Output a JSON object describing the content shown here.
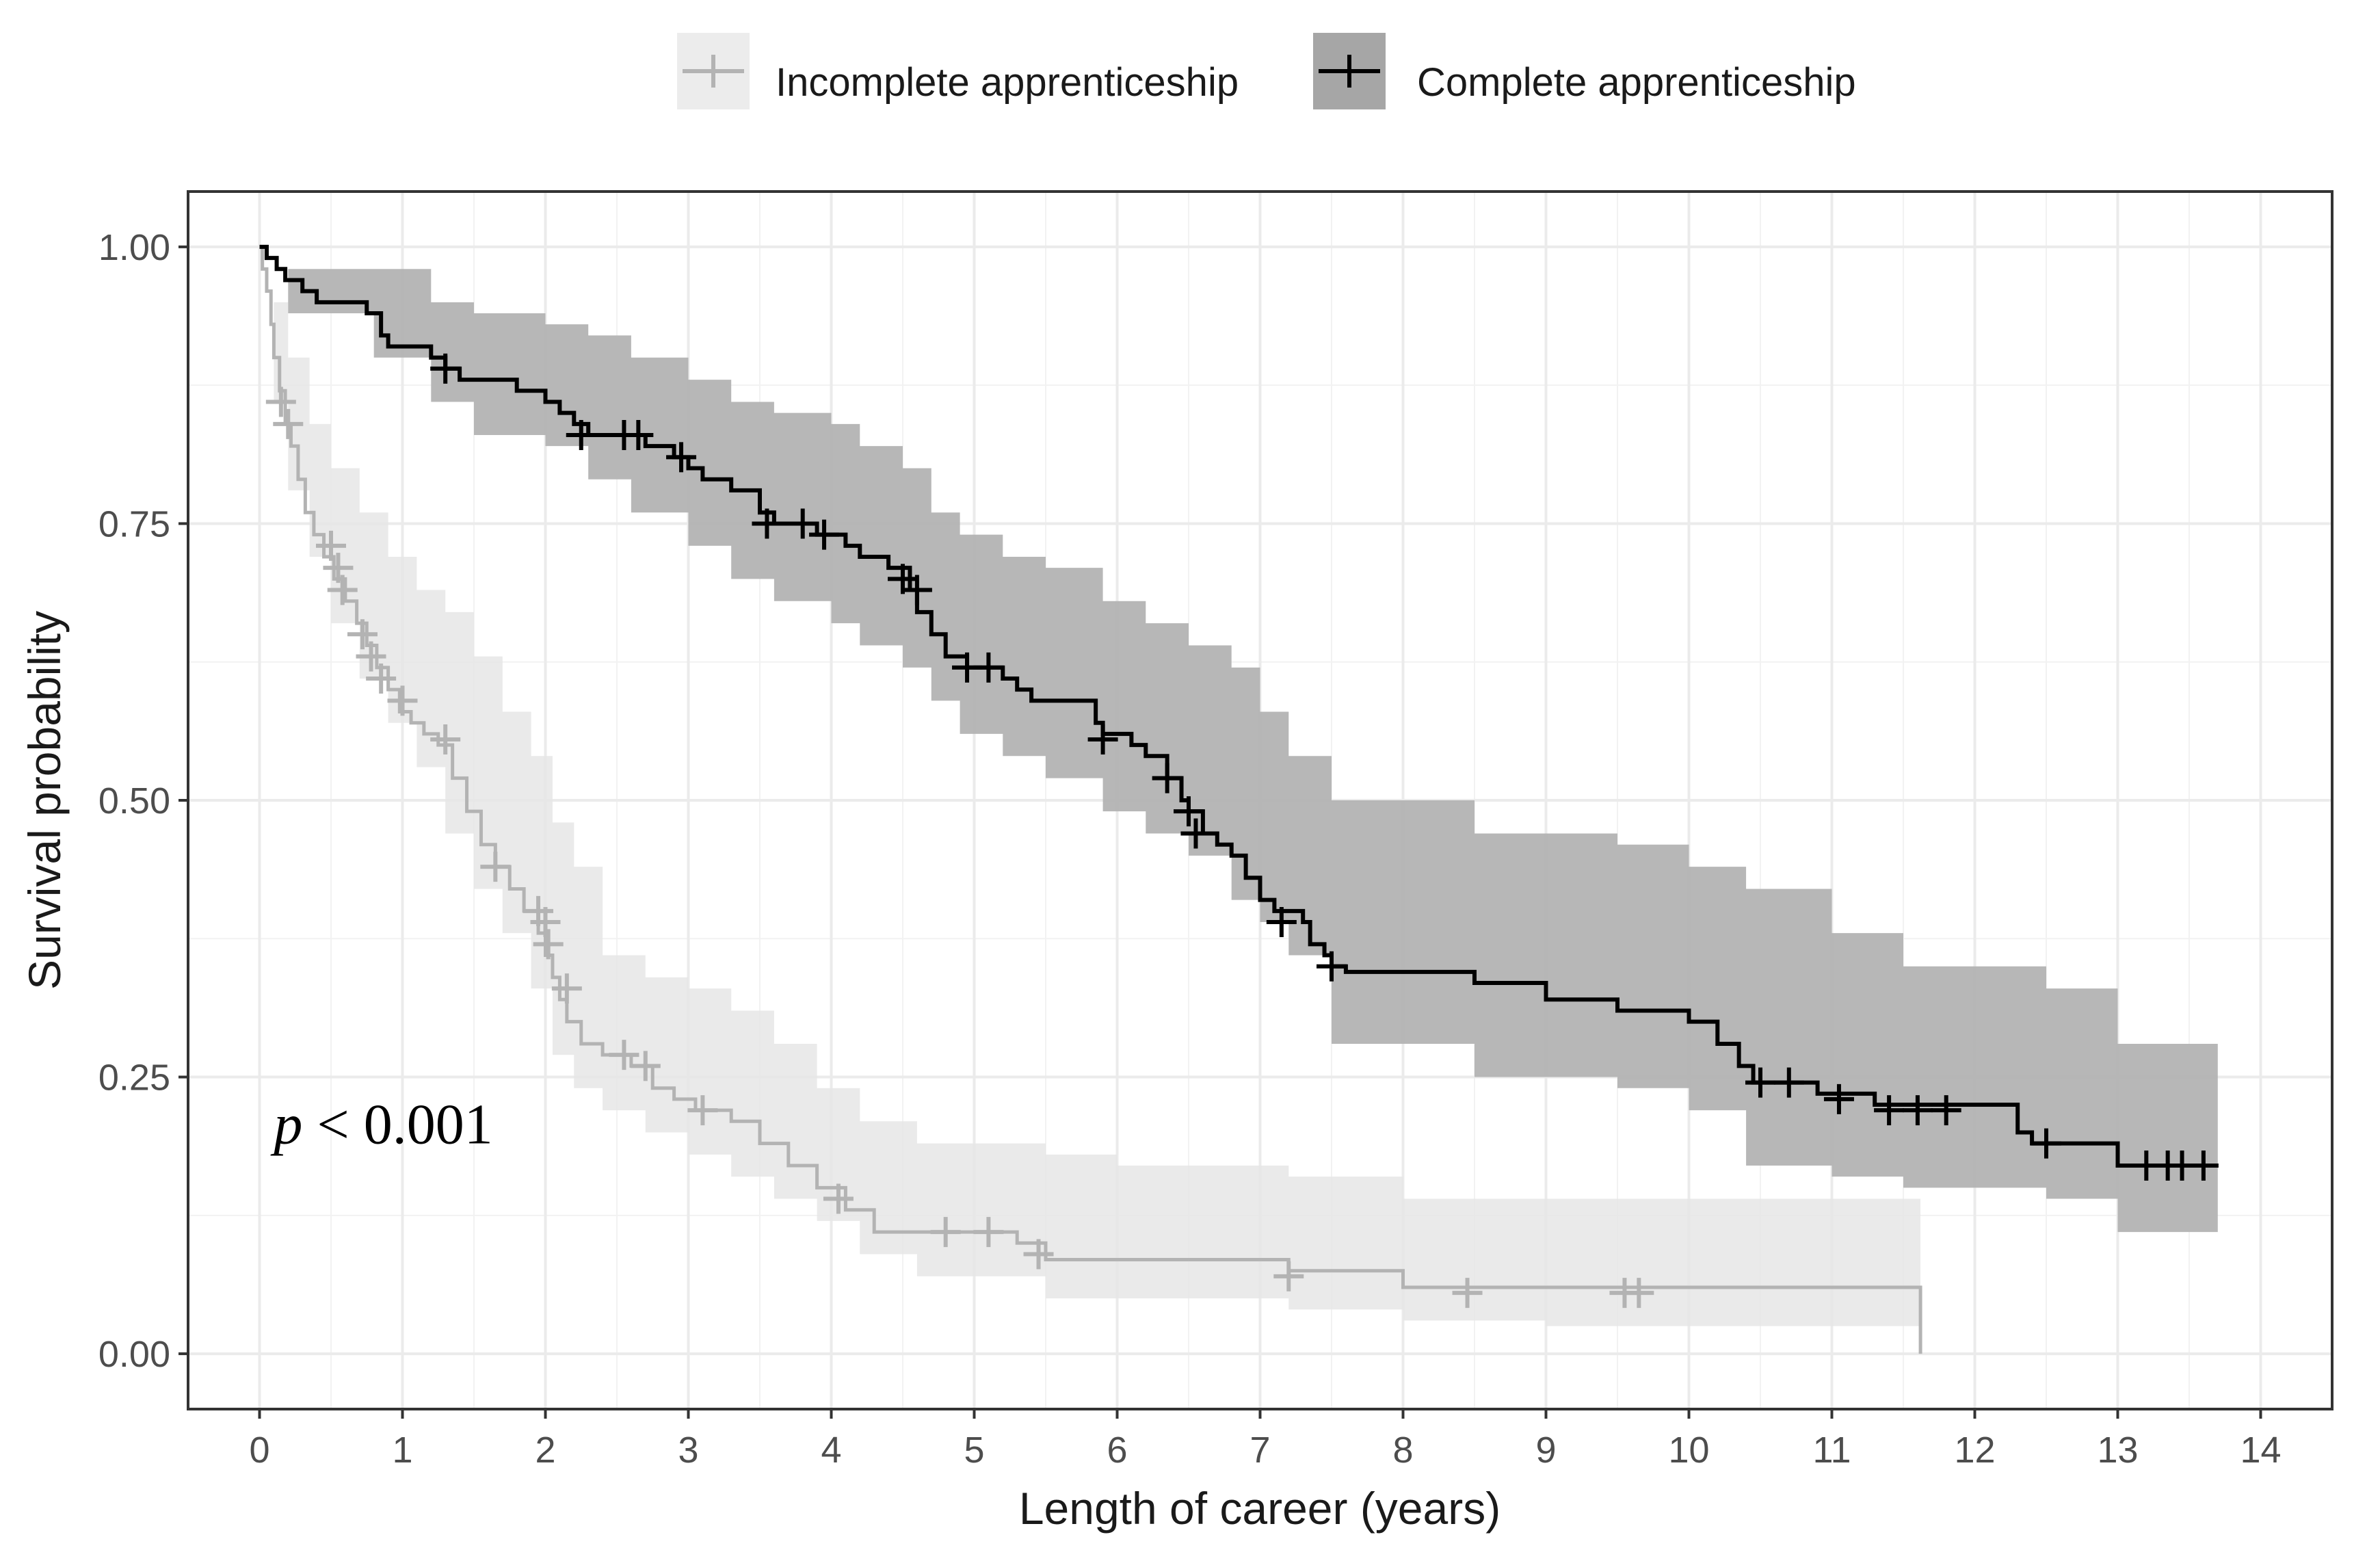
{
  "chart_data": {
    "type": "line",
    "subtype": "kaplan-meier survival curve with confidence bands",
    "xlabel": "Length of career (years)",
    "ylabel": "Survival probability",
    "xlim": [
      -0.5,
      14.5
    ],
    "ylim": [
      -0.05,
      1.05
    ],
    "xticks": [
      0,
      1,
      2,
      3,
      4,
      5,
      6,
      7,
      8,
      9,
      10,
      11,
      12,
      13,
      14
    ],
    "yticks": [
      0,
      0.25,
      0.5,
      0.75,
      1
    ],
    "xtick_labels": [
      "0",
      "1",
      "2",
      "3",
      "4",
      "5",
      "6",
      "7",
      "8",
      "9",
      "10",
      "11",
      "12",
      "13",
      "14"
    ],
    "ytick_labels": [
      "0.00",
      "0.25",
      "0.50",
      "0.75",
      "1.00"
    ],
    "grid": true,
    "legend_position": "top",
    "annotation": {
      "prefix": "p",
      "text": " < 0.001",
      "x": 0.1,
      "y": 0.19
    },
    "series": [
      {
        "name": "Incomplete apprenticeship",
        "line_color": "#b3b3b3",
        "band_color": "#e6e6e6",
        "legend_key_color": "#cccccc",
        "steps": [
          [
            0,
            1.0
          ],
          [
            0.02,
            0.98
          ],
          [
            0.05,
            0.96
          ],
          [
            0.08,
            0.93
          ],
          [
            0.1,
            0.9
          ],
          [
            0.14,
            0.87
          ],
          [
            0.18,
            0.84
          ],
          [
            0.22,
            0.82
          ],
          [
            0.27,
            0.79
          ],
          [
            0.32,
            0.76
          ],
          [
            0.38,
            0.74
          ],
          [
            0.45,
            0.72
          ],
          [
            0.52,
            0.7
          ],
          [
            0.6,
            0.68
          ],
          [
            0.68,
            0.66
          ],
          [
            0.75,
            0.64
          ],
          [
            0.82,
            0.62
          ],
          [
            0.9,
            0.6
          ],
          [
            0.98,
            0.58
          ],
          [
            1.06,
            0.57
          ],
          [
            1.15,
            0.56
          ],
          [
            1.25,
            0.55
          ],
          [
            1.35,
            0.52
          ],
          [
            1.45,
            0.49
          ],
          [
            1.55,
            0.46
          ],
          [
            1.65,
            0.44
          ],
          [
            1.75,
            0.42
          ],
          [
            1.85,
            0.4
          ],
          [
            1.95,
            0.38
          ],
          [
            2.0,
            0.36
          ],
          [
            2.05,
            0.34
          ],
          [
            2.1,
            0.32
          ],
          [
            2.15,
            0.3
          ],
          [
            2.25,
            0.28
          ],
          [
            2.4,
            0.27
          ],
          [
            2.6,
            0.26
          ],
          [
            2.75,
            0.24
          ],
          [
            2.9,
            0.23
          ],
          [
            3.05,
            0.22
          ],
          [
            3.3,
            0.21
          ],
          [
            3.5,
            0.19
          ],
          [
            3.7,
            0.17
          ],
          [
            3.9,
            0.15
          ],
          [
            4.1,
            0.13
          ],
          [
            4.3,
            0.11
          ],
          [
            5.3,
            0.1
          ],
          [
            5.5,
            0.085
          ],
          [
            7.2,
            0.075
          ],
          [
            8.0,
            0.06
          ],
          [
            11.62,
            0.06
          ],
          [
            11.62,
            0.0
          ]
        ],
        "band_upper": [
          [
            0,
            1.0
          ],
          [
            0.1,
            0.95
          ],
          [
            0.2,
            0.9
          ],
          [
            0.35,
            0.84
          ],
          [
            0.5,
            0.8
          ],
          [
            0.7,
            0.76
          ],
          [
            0.9,
            0.72
          ],
          [
            1.1,
            0.69
          ],
          [
            1.3,
            0.67
          ],
          [
            1.5,
            0.63
          ],
          [
            1.7,
            0.58
          ],
          [
            1.9,
            0.54
          ],
          [
            2.05,
            0.48
          ],
          [
            2.2,
            0.44
          ],
          [
            2.4,
            0.36
          ],
          [
            2.7,
            0.34
          ],
          [
            3.0,
            0.33
          ],
          [
            3.3,
            0.31
          ],
          [
            3.6,
            0.28
          ],
          [
            3.9,
            0.24
          ],
          [
            4.2,
            0.21
          ],
          [
            4.6,
            0.19
          ],
          [
            5.5,
            0.18
          ],
          [
            6.0,
            0.17
          ],
          [
            7.2,
            0.16
          ],
          [
            8.0,
            0.14
          ],
          [
            9.0,
            0.14
          ],
          [
            11.62,
            0.14
          ]
        ],
        "band_lower": [
          [
            0,
            1.0
          ],
          [
            0.1,
            0.86
          ],
          [
            0.2,
            0.78
          ],
          [
            0.35,
            0.72
          ],
          [
            0.5,
            0.66
          ],
          [
            0.7,
            0.61
          ],
          [
            0.9,
            0.57
          ],
          [
            1.1,
            0.53
          ],
          [
            1.3,
            0.47
          ],
          [
            1.5,
            0.42
          ],
          [
            1.7,
            0.38
          ],
          [
            1.9,
            0.33
          ],
          [
            2.05,
            0.27
          ],
          [
            2.2,
            0.24
          ],
          [
            2.4,
            0.22
          ],
          [
            2.7,
            0.2
          ],
          [
            3.0,
            0.18
          ],
          [
            3.3,
            0.16
          ],
          [
            3.6,
            0.14
          ],
          [
            3.9,
            0.12
          ],
          [
            4.2,
            0.09
          ],
          [
            4.6,
            0.07
          ],
          [
            5.5,
            0.05
          ],
          [
            6.0,
            0.05
          ],
          [
            7.2,
            0.04
          ],
          [
            8.0,
            0.03
          ],
          [
            9.0,
            0.025
          ],
          [
            11.62,
            0.025
          ]
        ],
        "censor": [
          [
            0.15,
            0.86
          ],
          [
            0.2,
            0.84
          ],
          [
            0.5,
            0.73
          ],
          [
            0.55,
            0.71
          ],
          [
            0.58,
            0.69
          ],
          [
            0.72,
            0.65
          ],
          [
            0.78,
            0.63
          ],
          [
            0.85,
            0.61
          ],
          [
            1.0,
            0.59
          ],
          [
            1.3,
            0.555
          ],
          [
            1.65,
            0.44
          ],
          [
            1.95,
            0.4
          ],
          [
            2.0,
            0.39
          ],
          [
            2.02,
            0.37
          ],
          [
            2.15,
            0.33
          ],
          [
            2.55,
            0.27
          ],
          [
            2.7,
            0.26
          ],
          [
            3.1,
            0.22
          ],
          [
            4.05,
            0.14
          ],
          [
            4.8,
            0.11
          ],
          [
            5.1,
            0.11
          ],
          [
            5.45,
            0.09
          ],
          [
            7.2,
            0.07
          ],
          [
            8.45,
            0.055
          ],
          [
            9.55,
            0.055
          ],
          [
            9.65,
            0.055
          ]
        ]
      },
      {
        "name": "Complete apprenticeship",
        "line_color": "#000000",
        "band_color": "#b3b3b3",
        "legend_key_color": "#999999",
        "steps": [
          [
            0,
            1.0
          ],
          [
            0.05,
            0.99
          ],
          [
            0.12,
            0.98
          ],
          [
            0.18,
            0.97
          ],
          [
            0.3,
            0.96
          ],
          [
            0.4,
            0.95
          ],
          [
            0.75,
            0.94
          ],
          [
            0.85,
            0.92
          ],
          [
            0.9,
            0.91
          ],
          [
            1.2,
            0.9
          ],
          [
            1.3,
            0.89
          ],
          [
            1.4,
            0.88
          ],
          [
            1.8,
            0.87
          ],
          [
            2.0,
            0.86
          ],
          [
            2.1,
            0.85
          ],
          [
            2.2,
            0.84
          ],
          [
            2.3,
            0.83
          ],
          [
            2.7,
            0.82
          ],
          [
            2.9,
            0.81
          ],
          [
            3.0,
            0.8
          ],
          [
            3.1,
            0.79
          ],
          [
            3.3,
            0.78
          ],
          [
            3.5,
            0.76
          ],
          [
            3.6,
            0.75
          ],
          [
            3.9,
            0.74
          ],
          [
            4.1,
            0.73
          ],
          [
            4.2,
            0.72
          ],
          [
            4.4,
            0.71
          ],
          [
            4.55,
            0.69
          ],
          [
            4.6,
            0.67
          ],
          [
            4.7,
            0.65
          ],
          [
            4.8,
            0.63
          ],
          [
            4.95,
            0.62
          ],
          [
            5.2,
            0.61
          ],
          [
            5.3,
            0.6
          ],
          [
            5.4,
            0.59
          ],
          [
            5.85,
            0.57
          ],
          [
            5.9,
            0.56
          ],
          [
            6.1,
            0.55
          ],
          [
            6.2,
            0.54
          ],
          [
            6.35,
            0.52
          ],
          [
            6.45,
            0.5
          ],
          [
            6.5,
            0.49
          ],
          [
            6.6,
            0.47
          ],
          [
            6.7,
            0.46
          ],
          [
            6.8,
            0.45
          ],
          [
            6.9,
            0.43
          ],
          [
            7.0,
            0.41
          ],
          [
            7.1,
            0.4
          ],
          [
            7.3,
            0.39
          ],
          [
            7.35,
            0.37
          ],
          [
            7.45,
            0.36
          ],
          [
            7.5,
            0.35
          ],
          [
            7.6,
            0.345
          ],
          [
            8.5,
            0.335
          ],
          [
            9.0,
            0.32
          ],
          [
            9.5,
            0.31
          ],
          [
            10.0,
            0.3
          ],
          [
            10.2,
            0.28
          ],
          [
            10.35,
            0.26
          ],
          [
            10.45,
            0.245
          ],
          [
            10.9,
            0.235
          ],
          [
            11.3,
            0.225
          ],
          [
            12.3,
            0.2
          ],
          [
            12.4,
            0.19
          ],
          [
            13.0,
            0.17
          ],
          [
            13.7,
            0.17
          ]
        ],
        "band_upper": [
          [
            0,
            1.0
          ],
          [
            0.2,
            0.98
          ],
          [
            0.8,
            0.98
          ],
          [
            1.2,
            0.95
          ],
          [
            1.5,
            0.94
          ],
          [
            2.0,
            0.93
          ],
          [
            2.3,
            0.92
          ],
          [
            2.6,
            0.9
          ],
          [
            3.0,
            0.88
          ],
          [
            3.3,
            0.86
          ],
          [
            3.6,
            0.85
          ],
          [
            4.0,
            0.84
          ],
          [
            4.2,
            0.82
          ],
          [
            4.5,
            0.8
          ],
          [
            4.7,
            0.76
          ],
          [
            4.9,
            0.74
          ],
          [
            5.2,
            0.72
          ],
          [
            5.5,
            0.71
          ],
          [
            5.9,
            0.68
          ],
          [
            6.2,
            0.66
          ],
          [
            6.5,
            0.64
          ],
          [
            6.8,
            0.62
          ],
          [
            7.0,
            0.58
          ],
          [
            7.2,
            0.54
          ],
          [
            7.5,
            0.5
          ],
          [
            8.5,
            0.47
          ],
          [
            9.5,
            0.46
          ],
          [
            10.0,
            0.44
          ],
          [
            10.4,
            0.42
          ],
          [
            11.0,
            0.38
          ],
          [
            11.5,
            0.35
          ],
          [
            12.5,
            0.33
          ],
          [
            13.0,
            0.28
          ],
          [
            13.7,
            0.28
          ]
        ],
        "band_lower": [
          [
            0,
            1.0
          ],
          [
            0.2,
            0.94
          ],
          [
            0.8,
            0.9
          ],
          [
            1.2,
            0.86
          ],
          [
            1.5,
            0.83
          ],
          [
            2.0,
            0.82
          ],
          [
            2.3,
            0.79
          ],
          [
            2.6,
            0.76
          ],
          [
            3.0,
            0.73
          ],
          [
            3.3,
            0.7
          ],
          [
            3.6,
            0.68
          ],
          [
            4.0,
            0.66
          ],
          [
            4.2,
            0.64
          ],
          [
            4.5,
            0.62
          ],
          [
            4.7,
            0.59
          ],
          [
            4.9,
            0.56
          ],
          [
            5.2,
            0.54
          ],
          [
            5.5,
            0.52
          ],
          [
            5.9,
            0.49
          ],
          [
            6.2,
            0.47
          ],
          [
            6.5,
            0.45
          ],
          [
            6.8,
            0.41
          ],
          [
            7.0,
            0.39
          ],
          [
            7.2,
            0.36
          ],
          [
            7.5,
            0.28
          ],
          [
            8.5,
            0.25
          ],
          [
            9.5,
            0.24
          ],
          [
            10.0,
            0.22
          ],
          [
            10.4,
            0.17
          ],
          [
            11.0,
            0.16
          ],
          [
            11.5,
            0.15
          ],
          [
            12.5,
            0.14
          ],
          [
            13.0,
            0.11
          ],
          [
            13.7,
            0.11
          ]
        ],
        "censor": [
          [
            1.3,
            0.89
          ],
          [
            2.25,
            0.83
          ],
          [
            2.55,
            0.83
          ],
          [
            2.65,
            0.83
          ],
          [
            2.95,
            0.81
          ],
          [
            3.55,
            0.75
          ],
          [
            3.8,
            0.75
          ],
          [
            3.95,
            0.74
          ],
          [
            4.5,
            0.7
          ],
          [
            4.6,
            0.69
          ],
          [
            4.95,
            0.62
          ],
          [
            5.1,
            0.62
          ],
          [
            5.9,
            0.555
          ],
          [
            6.35,
            0.52
          ],
          [
            6.5,
            0.49
          ],
          [
            6.55,
            0.47
          ],
          [
            7.15,
            0.39
          ],
          [
            7.5,
            0.35
          ],
          [
            10.5,
            0.245
          ],
          [
            10.7,
            0.245
          ],
          [
            11.05,
            0.23
          ],
          [
            11.4,
            0.22
          ],
          [
            11.6,
            0.22
          ],
          [
            11.8,
            0.22
          ],
          [
            12.5,
            0.19
          ],
          [
            13.2,
            0.17
          ],
          [
            13.35,
            0.17
          ],
          [
            13.45,
            0.17
          ],
          [
            13.6,
            0.17
          ]
        ]
      }
    ]
  }
}
